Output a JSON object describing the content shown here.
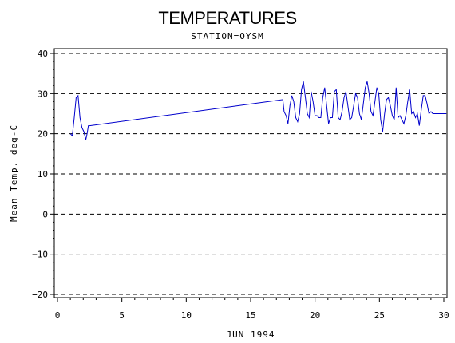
{
  "chart_data": {
    "type": "line",
    "title": "TEMPERATURES",
    "subtitle": "STATION=OYSM",
    "xlabel": "JUN 1994",
    "ylabel": "Mean Temp. deg-C",
    "xlim": [
      0,
      30
    ],
    "ylim": [
      -20,
      40
    ],
    "xticks": [
      0,
      5,
      10,
      15,
      20,
      25,
      30
    ],
    "yticks": [
      -20,
      -10,
      0,
      10,
      20,
      30,
      40
    ],
    "grid": "horizontal-dashed",
    "line_color": "#0000cc",
    "series": [
      {
        "values_x": [
          1.0,
          1.15,
          1.3,
          1.45,
          1.6,
          1.75,
          1.9,
          2.05,
          2.2,
          2.3,
          2.4,
          2.5,
          17.5,
          17.6,
          17.75,
          17.9,
          18.05,
          18.2,
          18.35,
          18.5,
          18.65,
          18.8,
          18.95,
          19.1,
          19.25,
          19.4,
          19.55,
          19.7,
          19.85,
          20.0,
          20.15,
          20.3,
          20.45,
          20.6,
          20.75,
          20.9,
          21.05,
          21.2,
          21.35,
          21.5,
          21.65,
          21.8,
          21.95,
          22.1,
          22.25,
          22.4,
          22.55,
          22.7,
          22.85,
          23.0,
          23.15,
          23.3,
          23.45,
          23.6,
          23.75,
          23.9,
          24.05,
          24.2,
          24.35,
          24.5,
          24.65,
          24.8,
          24.95,
          25.1,
          25.25,
          25.4,
          25.55,
          25.7,
          25.85,
          26.0,
          26.15,
          26.3,
          26.45,
          26.6,
          26.75,
          26.9,
          27.05,
          27.2,
          27.35,
          27.5,
          27.65,
          27.8,
          27.95,
          28.1,
          28.25,
          28.4,
          28.55,
          28.7,
          28.85,
          29.0,
          29.15,
          29.3,
          29.45,
          29.6,
          29.75,
          29.9,
          30.05,
          30.2
        ],
        "values_y": [
          20.0,
          19.5,
          24.0,
          29.0,
          29.5,
          24.0,
          21.5,
          20.5,
          18.5,
          20.0,
          22.0,
          22.0,
          28.5,
          25.5,
          24.5,
          22.5,
          27.0,
          29.5,
          28.0,
          24.0,
          23.0,
          25.0,
          31.0,
          33.0,
          29.0,
          25.0,
          24.0,
          30.5,
          28.0,
          24.5,
          24.5,
          24.0,
          24.0,
          29.0,
          31.5,
          27.0,
          22.5,
          24.0,
          24.0,
          30.5,
          31.0,
          24.0,
          23.5,
          25.5,
          29.0,
          30.5,
          27.0,
          23.5,
          24.0,
          27.0,
          30.0,
          29.0,
          25.0,
          23.5,
          27.5,
          31.5,
          33.0,
          30.0,
          25.5,
          24.5,
          28.0,
          31.5,
          30.0,
          23.5,
          20.5,
          25.0,
          28.5,
          29.0,
          27.0,
          24.5,
          23.5,
          31.5,
          24.0,
          24.5,
          23.5,
          22.5,
          24.5,
          28.0,
          31.0,
          25.0,
          25.5,
          24.0,
          25.0,
          22.0,
          26.0,
          29.5,
          29.5,
          27.5,
          25.0,
          25.5,
          25.0,
          25.0,
          25.0,
          25.0,
          25.0,
          25.0,
          25.0,
          25.0
        ]
      }
    ]
  }
}
